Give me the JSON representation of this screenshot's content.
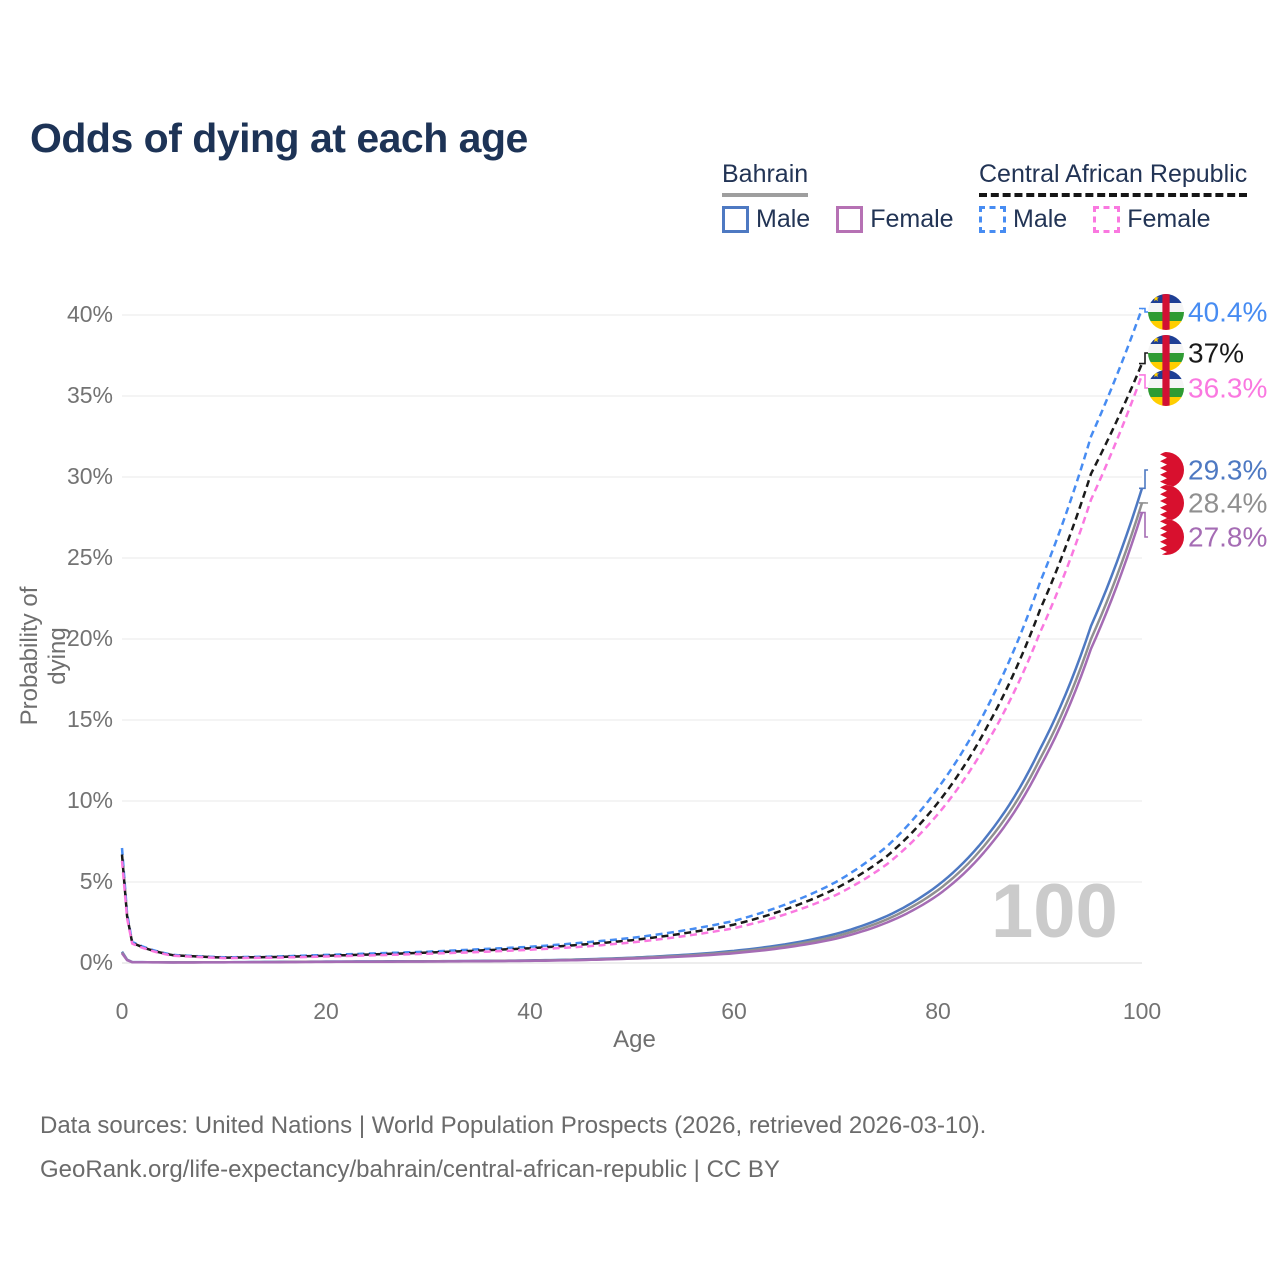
{
  "page": {
    "title": "Odds of dying at each age",
    "watermark": "100",
    "footer_line1": "Data sources: United Nations | World Population Prospects (2026, retrieved 2026-03-10).",
    "footer_line2": "GeoRank.org/life-expectancy/bahrain/central-african-republic | CC BY"
  },
  "legend": {
    "groups": [
      {
        "label": "Bahrain",
        "line_style": "solid",
        "items": [
          {
            "label": "Male",
            "color": "#4e79c2"
          },
          {
            "label": "Female",
            "color": "#b671b4"
          }
        ]
      },
      {
        "label": "Central African Republic",
        "line_style": "dashed",
        "items": [
          {
            "label": "Male",
            "color": "#478cf2"
          },
          {
            "label": "Female",
            "color": "#fa78e0"
          }
        ]
      }
    ]
  },
  "chart_data": {
    "type": "line",
    "title": "Odds of dying at each age",
    "xlabel": "Age",
    "ylabel": "Probability of dying",
    "xlim": [
      0,
      100
    ],
    "ylim": [
      0,
      40
    ],
    "x_ticks": [
      "0",
      "20",
      "40",
      "60",
      "80",
      "100"
    ],
    "y_ticks": [
      "0%",
      "5%",
      "10%",
      "15%",
      "20%",
      "25%",
      "30%",
      "35%",
      "40%"
    ],
    "grid": "horizontal",
    "y_unit": "percent",
    "ages": [
      0,
      1,
      5,
      10,
      15,
      20,
      25,
      30,
      35,
      40,
      45,
      50,
      55,
      60,
      65,
      70,
      75,
      80,
      85,
      90,
      95,
      100
    ],
    "series": [
      {
        "name": "Bahrain Male",
        "country": "Bahrain",
        "sex": "Male",
        "flag": "bahrain",
        "line_style": "solid",
        "color": "#4e79c2",
        "end_label": "29.3%",
        "values": [
          0.7,
          0.06,
          0.04,
          0.05,
          0.07,
          0.09,
          0.1,
          0.11,
          0.13,
          0.16,
          0.22,
          0.33,
          0.5,
          0.75,
          1.15,
          1.8,
          2.9,
          4.8,
          8.0,
          13.2,
          20.8,
          29.3
        ]
      },
      {
        "name": "Bahrain Both sexes",
        "country": "Bahrain",
        "sex": "Both",
        "flag": "bahrain",
        "line_style": "solid",
        "color": "#909090",
        "end_label": "28.4%",
        "values": [
          0.65,
          0.055,
          0.035,
          0.045,
          0.06,
          0.08,
          0.09,
          0.1,
          0.12,
          0.15,
          0.2,
          0.3,
          0.45,
          0.68,
          1.05,
          1.65,
          2.7,
          4.5,
          7.6,
          12.6,
          20.0,
          28.4
        ]
      },
      {
        "name": "Bahrain Female",
        "country": "Bahrain",
        "sex": "Female",
        "flag": "bahrain",
        "line_style": "solid",
        "color": "#a56cb4",
        "end_label": "27.8%",
        "values": [
          0.6,
          0.05,
          0.03,
          0.04,
          0.05,
          0.07,
          0.08,
          0.09,
          0.11,
          0.13,
          0.18,
          0.27,
          0.4,
          0.6,
          0.95,
          1.5,
          2.5,
          4.2,
          7.2,
          12.1,
          19.4,
          27.8
        ]
      },
      {
        "name": "Central African Republic Male",
        "country": "Central African Republic",
        "sex": "Male",
        "flag": "central-african-republic",
        "line_style": "dashed",
        "color": "#478cf2",
        "end_label": "40.4%",
        "values": [
          7.1,
          1.3,
          0.5,
          0.35,
          0.4,
          0.5,
          0.6,
          0.7,
          0.85,
          1.0,
          1.25,
          1.55,
          2.0,
          2.6,
          3.6,
          5.0,
          7.2,
          10.8,
          16.0,
          23.5,
          32.5,
          40.4
        ]
      },
      {
        "name": "Central African Republic Both sexes",
        "country": "Central African Republic",
        "sex": "Both",
        "flag": "central-african-republic",
        "line_style": "dashed",
        "color": "#1a1a1a",
        "end_label": "37%",
        "values": [
          6.7,
          1.25,
          0.48,
          0.33,
          0.37,
          0.45,
          0.54,
          0.64,
          0.77,
          0.91,
          1.13,
          1.41,
          1.82,
          2.37,
          3.3,
          4.6,
          6.6,
          9.9,
          14.8,
          21.8,
          30.2,
          37.0
        ]
      },
      {
        "name": "Central African Republic Female",
        "country": "Central African Republic",
        "sex": "Female",
        "flag": "central-african-republic",
        "line_style": "dashed",
        "color": "#fa78e0",
        "end_label": "36.3%",
        "values": [
          6.3,
          1.2,
          0.45,
          0.3,
          0.33,
          0.4,
          0.48,
          0.57,
          0.68,
          0.82,
          1.0,
          1.27,
          1.65,
          2.15,
          3.0,
          4.2,
          6.1,
          9.2,
          13.8,
          20.4,
          28.6,
          36.3
        ]
      }
    ],
    "flag_colors": {
      "bahrain_red": "#d8102e",
      "car_blue": "#1e3f94",
      "car_white": "#f5f5f5",
      "car_green": "#2f9b33",
      "car_yellow": "#ffce00",
      "car_red": "#d21034",
      "car_star_yellow": "#ffce00"
    }
  }
}
